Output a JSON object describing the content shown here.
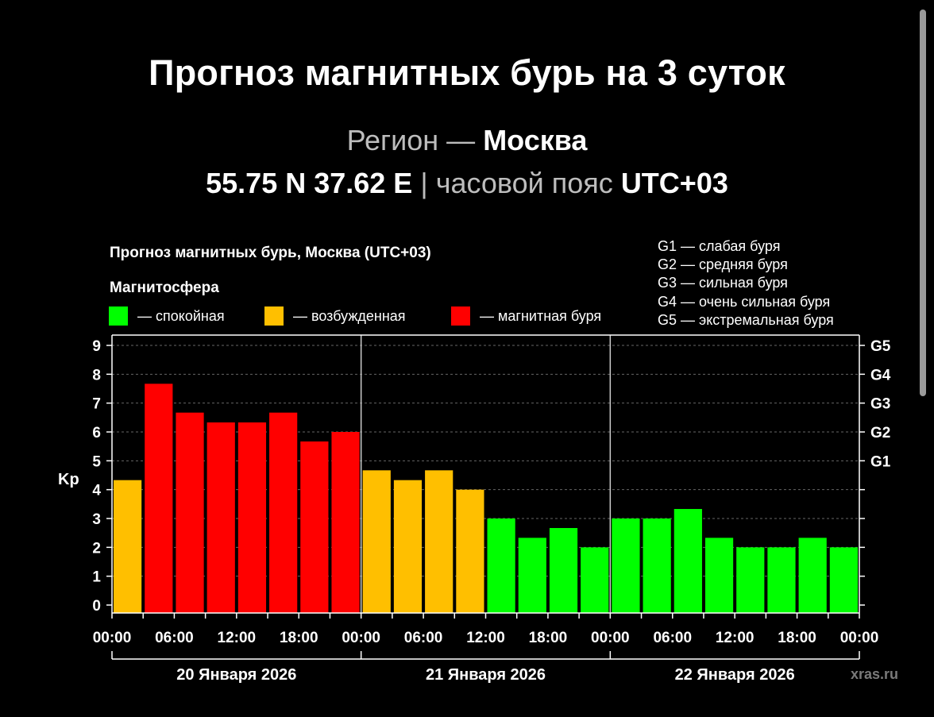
{
  "header": {
    "title": "Прогноз магнитных бурь на 3 суток",
    "region_prefix": "Регион —",
    "region_name": "Москва",
    "coords": "55.75 N 37.62 E",
    "separator": "|",
    "tz_prefix": "часовой пояс",
    "tz_value": "UTC+03"
  },
  "legend": {
    "section_label": "Магнитосфера",
    "items": [
      {
        "label": "— спокойная",
        "color": "#00ff00"
      },
      {
        "label": "— возбужденная",
        "color": "#ffbf00"
      },
      {
        "label": "— магнитная буря",
        "color": "#ff0000"
      }
    ],
    "g_scale": [
      "G1 — слабая буря",
      "G2 — средняя буря",
      "G3 — сильная буря",
      "G4 — очень сильная буря",
      "G5 — экстремальная буря"
    ]
  },
  "watermark": "xras.ru",
  "chart_data": {
    "type": "bar",
    "title": "Прогноз магнитных бурь, Москва (UTC+03)",
    "ylabel": "Kp",
    "ylim": [
      0,
      9
    ],
    "y_ticks": [
      "0",
      "1",
      "2",
      "3",
      "4",
      "5",
      "6",
      "7",
      "8",
      "9"
    ],
    "right_ticks": [
      {
        "value": 5,
        "label": "G1"
      },
      {
        "value": 6,
        "label": "G2"
      },
      {
        "value": 7,
        "label": "G3"
      },
      {
        "value": 8,
        "label": "G4"
      },
      {
        "value": 9,
        "label": "G5"
      }
    ],
    "x_tick_labels": [
      "00:00",
      "06:00",
      "12:00",
      "18:00",
      "00:00",
      "06:00",
      "12:00",
      "18:00",
      "00:00",
      "06:00",
      "12:00",
      "18:00",
      "00:00"
    ],
    "days": [
      "20 Января 2026",
      "21 Января 2026",
      "22 Января 2026"
    ],
    "grid": true,
    "values": [
      4.33,
      7.67,
      6.67,
      6.33,
      6.33,
      6.67,
      5.67,
      6.0,
      4.67,
      4.33,
      4.67,
      4.0,
      3.0,
      2.33,
      2.67,
      2.0,
      3.0,
      3.0,
      3.33,
      2.33,
      2.0,
      2.0,
      2.33,
      2.0
    ],
    "colors": [
      "#ffbf00",
      "#ff0000",
      "#ff0000",
      "#ff0000",
      "#ff0000",
      "#ff0000",
      "#ff0000",
      "#ff0000",
      "#ffbf00",
      "#ffbf00",
      "#ffbf00",
      "#ffbf00",
      "#00ff00",
      "#00ff00",
      "#00ff00",
      "#00ff00",
      "#00ff00",
      "#00ff00",
      "#00ff00",
      "#00ff00",
      "#00ff00",
      "#00ff00",
      "#00ff00",
      "#00ff00"
    ]
  }
}
